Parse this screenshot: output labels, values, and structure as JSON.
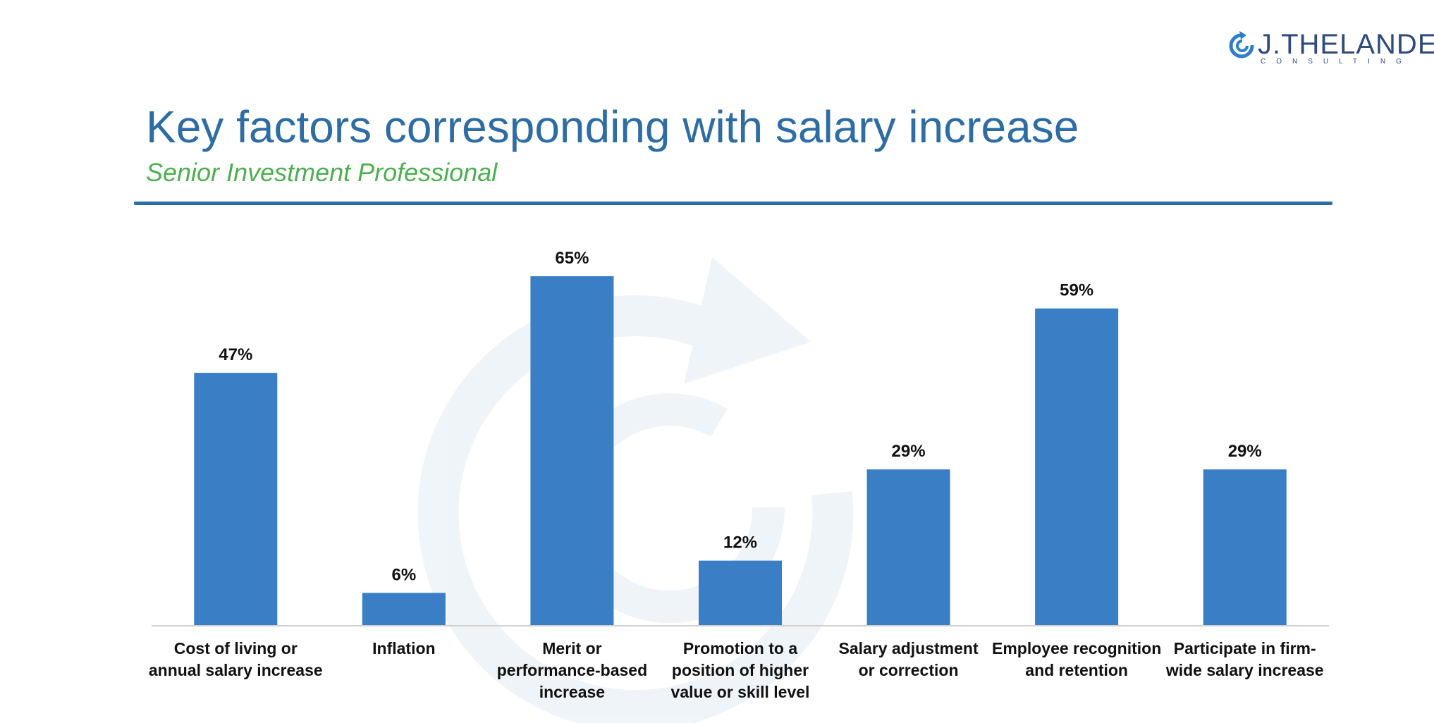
{
  "logo": {
    "name": "J.THELANDER",
    "sub": "CONSULTING"
  },
  "header": {
    "title": "Key factors corresponding with salary increase",
    "subtitle": "Senior Investment Professional"
  },
  "colors": {
    "bar": "#3a7ec5",
    "title": "#2e6da4",
    "subtitle": "#4caf50",
    "axis": "#d0d0d0"
  },
  "chart_data": {
    "type": "bar",
    "title": "Key factors corresponding with salary increase",
    "subtitle": "Senior Investment Professional",
    "xlabel": "",
    "ylabel": "",
    "ylim": [
      0,
      70
    ],
    "grid": false,
    "categories": [
      [
        "Cost of living or",
        "annual salary increase"
      ],
      [
        "Inflation"
      ],
      [
        "Merit or",
        "performance-based",
        "increase"
      ],
      [
        "Promotion to a",
        "position of higher",
        "value or skill level"
      ],
      [
        "Salary adjustment",
        "or correction"
      ],
      [
        "Employee recognition",
        "and retention"
      ],
      [
        "Participate in firm-",
        "wide salary increase"
      ]
    ],
    "values": [
      47,
      6,
      65,
      12,
      29,
      59,
      29
    ],
    "value_labels": [
      "47%",
      "6%",
      "65%",
      "12%",
      "29%",
      "59%",
      "29%"
    ]
  }
}
